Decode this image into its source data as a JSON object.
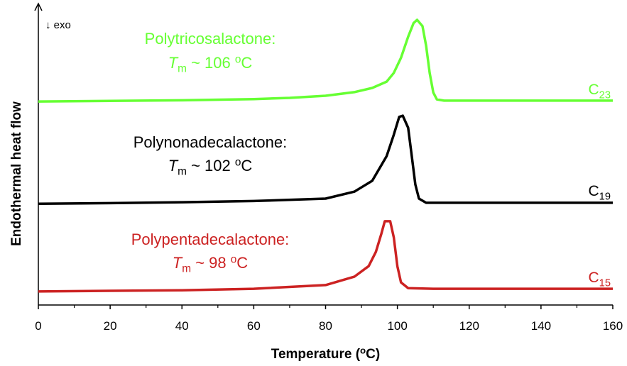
{
  "chart_data": {
    "type": "line",
    "y_label": "Endothermal heat flow",
    "x_label": {
      "main": "Temperature (",
      "sup": "o",
      "end": "C)"
    },
    "exo_note": "↓ exo",
    "xlim": [
      0,
      160
    ],
    "xticks": [
      0,
      20,
      40,
      60,
      80,
      100,
      120,
      140,
      160
    ],
    "xminorticks": [
      10,
      30,
      50,
      70,
      90,
      110,
      130,
      150
    ],
    "ylim": [
      0,
      100
    ],
    "series": [
      {
        "name": "Polytricosalactone:",
        "color": "#66ff33",
        "tm": {
          "symbol": "T",
          "sub": "m",
          "value": " ~ 106 ",
          "sup": "o",
          "unit": "C"
        },
        "end_label": {
          "main": "C",
          "sub": "23"
        },
        "x": [
          0,
          20,
          40,
          60,
          70,
          80,
          88,
          93,
          97,
          99,
          101,
          103,
          104.5,
          105.5,
          107,
          108,
          109,
          110,
          111,
          113,
          120,
          140,
          160
        ],
        "values": [
          67.5,
          67.7,
          67.9,
          68.3,
          68.7,
          69.4,
          70.6,
          72,
          74.1,
          77,
          82,
          89,
          93.5,
          94.6,
          92.5,
          86,
          77,
          70.5,
          68.2,
          67.8,
          67.8,
          67.8,
          67.8
        ]
      },
      {
        "name": "Polynonadecalactone:",
        "color": "#000000",
        "tm": {
          "symbol": "T",
          "sub": "m",
          "value": " ~ 102 ",
          "sup": "o",
          "unit": "C"
        },
        "end_label": {
          "main": "C",
          "sub": "19"
        },
        "x": [
          0,
          20,
          40,
          60,
          80,
          88,
          93,
          97,
          99,
          100.5,
          101.5,
          103,
          104,
          105,
          106,
          108,
          120,
          140,
          160
        ],
        "values": [
          33.6,
          33.8,
          34.1,
          34.5,
          35.3,
          37.6,
          41.2,
          49.4,
          56.5,
          62.4,
          62.8,
          58.8,
          49.4,
          40,
          35.3,
          33.9,
          33.9,
          33.9,
          33.9
        ]
      },
      {
        "name": "Polypentadecalactone:",
        "color": "#cc2222",
        "tm": {
          "symbol": "T",
          "sub": "m",
          "value": " ~ 98 ",
          "sup": "o",
          "unit": "C"
        },
        "end_label": {
          "main": "C",
          "sub": "15"
        },
        "x": [
          0,
          20,
          40,
          60,
          80,
          88,
          92,
          94,
          95.5,
          96.5,
          98,
          99,
          100,
          101,
          103,
          110,
          130,
          160
        ],
        "values": [
          4.5,
          4.7,
          4.9,
          5.4,
          6.6,
          9.4,
          12.9,
          17.6,
          23.5,
          27.8,
          27.8,
          22.4,
          12.9,
          7.5,
          5.6,
          5.4,
          5.4,
          5.4
        ]
      }
    ]
  }
}
